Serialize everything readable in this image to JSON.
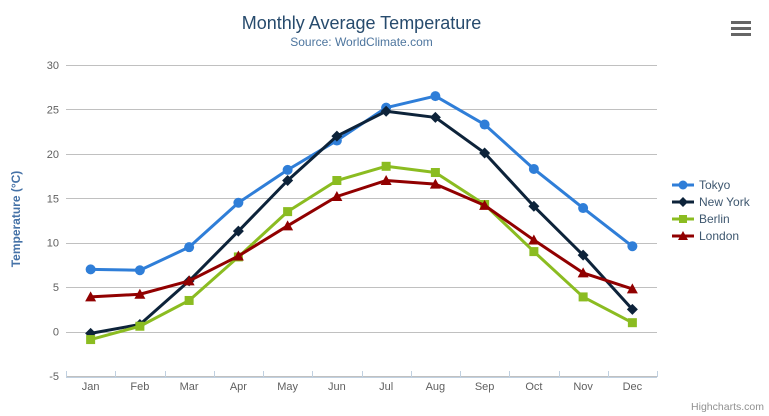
{
  "header": {
    "title": "Monthly Average Temperature",
    "subtitle": "Source: WorldClimate.com"
  },
  "export_menu": {
    "icon": "hamburger-icon"
  },
  "credits": {
    "label": "Highcharts.com"
  },
  "chart_data": {
    "type": "line",
    "title": "Monthly Average Temperature",
    "subtitle": "Source: WorldClimate.com",
    "categories": [
      "Jan",
      "Feb",
      "Mar",
      "Apr",
      "May",
      "Jun",
      "Jul",
      "Aug",
      "Sep",
      "Oct",
      "Nov",
      "Dec"
    ],
    "xlabel": "",
    "ylabel": "Temperature (°C)",
    "ylim": [
      -5,
      30
    ],
    "yticks": [
      -5,
      0,
      5,
      10,
      15,
      20,
      25,
      30
    ],
    "grid": true,
    "legend_position": "right",
    "series": [
      {
        "name": "Tokyo",
        "color": "#2f7ed8",
        "marker": "circle",
        "values": [
          7.0,
          6.9,
          9.5,
          14.5,
          18.2,
          21.5,
          25.2,
          26.5,
          23.3,
          18.3,
          13.9,
          9.6
        ]
      },
      {
        "name": "New York",
        "color": "#0d233a",
        "marker": "diamond",
        "values": [
          -0.2,
          0.8,
          5.7,
          11.3,
          17.0,
          22.0,
          24.8,
          24.1,
          20.1,
          14.1,
          8.6,
          2.5
        ]
      },
      {
        "name": "Berlin",
        "color": "#8bbc21",
        "marker": "square",
        "values": [
          -0.9,
          0.6,
          3.5,
          8.4,
          13.5,
          17.0,
          18.6,
          17.9,
          14.3,
          9.0,
          3.9,
          1.0
        ]
      },
      {
        "name": "London",
        "color": "#910000",
        "marker": "triangle",
        "values": [
          3.9,
          4.2,
          5.7,
          8.5,
          11.9,
          15.2,
          17.0,
          16.6,
          14.2,
          10.3,
          6.6,
          4.8
        ]
      }
    ],
    "axis_colors": {
      "grid": "#c0c0c0",
      "axis_line": "#c0d0e0",
      "labels": "#606060",
      "axis_title": "#4572a7"
    }
  }
}
